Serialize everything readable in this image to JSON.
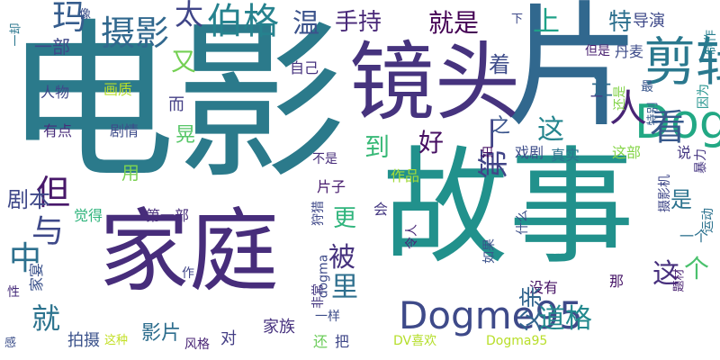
{
  "words": [
    {
      "text": "电影",
      "color": "#2b7a8b"
    },
    {
      "text": "故事",
      "color": "#21918c"
    },
    {
      "text": "片",
      "color": "#31688e"
    },
    {
      "text": "镜头",
      "color": "#46337e"
    },
    {
      "text": "家庭",
      "color": "#472d7b"
    },
    {
      "text": "剪辑",
      "color": "#2a788e"
    },
    {
      "text": "Dogme95",
      "color": "#3e4a89"
    },
    {
      "text": "Dogme",
      "color": "#22a884"
    },
    {
      "text": "人",
      "color": "#482475"
    },
    {
      "text": "看",
      "color": "#38598c"
    },
    {
      "text": "伯格",
      "color": "#26828e"
    },
    {
      "text": "摄影",
      "color": "#31688e"
    },
    {
      "text": "玛",
      "color": "#365d8d"
    },
    {
      "text": "太",
      "color": "#404688"
    },
    {
      "text": "温",
      "color": "#3b528b"
    },
    {
      "text": "手持",
      "color": "#482878"
    },
    {
      "text": "就是",
      "color": "#440154"
    },
    {
      "text": "上",
      "color": "#1fa188"
    },
    {
      "text": "特",
      "color": "#2d708e"
    },
    {
      "text": "导演",
      "color": "#3e4989"
    },
    {
      "text": "这",
      "color": "#25858e"
    },
    {
      "text": "第一",
      "color": "#414487"
    },
    {
      "text": "好",
      "color": "#471063"
    },
    {
      "text": "到",
      "color": "#38b977"
    },
    {
      "text": "更",
      "color": "#2fb47c"
    },
    {
      "text": "但",
      "color": "#48186a"
    },
    {
      "text": "与",
      "color": "#3e4989"
    },
    {
      "text": "中",
      "color": "#2d708e"
    },
    {
      "text": "被",
      "color": "#46327e"
    },
    {
      "text": "里",
      "color": "#2e6f8e"
    },
    {
      "text": "道格",
      "color": "#23898e"
    },
    {
      "text": "这",
      "color": "#472f7d"
    },
    {
      "text": "个",
      "color": "#4ac16d"
    },
    {
      "text": "就",
      "color": "#2c738e"
    },
    {
      "text": "剧本",
      "color": "#3f4889"
    },
    {
      "text": "又",
      "color": "#75d054"
    },
    {
      "text": "着",
      "color": "#3e4c8a"
    },
    {
      "text": "让",
      "color": "#2f6b8e"
    },
    {
      "text": "一部",
      "color": "#3f4788"
    },
    {
      "text": "用",
      "color": "#7ad151"
    },
    {
      "text": "晃",
      "color": "#56c667"
    },
    {
      "text": "之",
      "color": "#3a548c"
    },
    {
      "text": "画质",
      "color": "#b8de29"
    },
    {
      "text": "人物",
      "color": "#3f4889"
    },
    {
      "text": "有点",
      "color": "#472c7a"
    },
    {
      "text": "剧情",
      "color": "#3e4c8a"
    },
    {
      "text": "不是",
      "color": "#472c7a"
    },
    {
      "text": "自己",
      "color": "#46327e"
    },
    {
      "text": "而",
      "color": "#433e85"
    },
    {
      "text": "丹麦",
      "color": "#3e4c8a"
    },
    {
      "text": "但是",
      "color": "#481f70"
    },
    {
      "text": "制作",
      "color": "#277f8e"
    },
    {
      "text": "因为",
      "color": "#20928c"
    },
    {
      "text": "最",
      "color": "#39568c"
    },
    {
      "text": "还是",
      "color": "#84d44b"
    },
    {
      "text": "特别",
      "color": "#375b8d"
    },
    {
      "text": "这部",
      "color": "#86d549"
    },
    {
      "text": "说",
      "color": "#453882"
    },
    {
      "text": "暴力",
      "color": "#453581"
    },
    {
      "text": "戏剧",
      "color": "#3d4d8a"
    },
    {
      "text": "真实",
      "color": "#2c738e"
    },
    {
      "text": "作品",
      "color": "#a0da39"
    },
    {
      "text": "片子",
      "color": "#481c6e"
    },
    {
      "text": "拍",
      "color": "#471164"
    },
    {
      "text": "摄影机",
      "color": "#3f4788"
    },
    {
      "text": "运动",
      "color": "#2c728e"
    },
    {
      "text": "什么",
      "color": "#3c4f8a"
    },
    {
      "text": "令人",
      "color": "#482878"
    },
    {
      "text": "如果",
      "color": "#3b528b"
    },
    {
      "text": "没有",
      "color": "#471365"
    },
    {
      "text": "那",
      "color": "#481769"
    },
    {
      "text": "题材",
      "color": "#482071"
    },
    {
      "text": "一个",
      "color": "#2c718e"
    },
    {
      "text": "会",
      "color": "#453882"
    },
    {
      "text": "觉得",
      "color": "#2fb47c"
    },
    {
      "text": "第一部",
      "color": "#472d7b"
    },
    {
      "text": "家宴",
      "color": "#3b528b"
    },
    {
      "text": "狩猎",
      "color": "#3f4889"
    },
    {
      "text": "dogma",
      "color": "#3e4a89"
    },
    {
      "text": "非常",
      "color": "#453781"
    },
    {
      "text": "一样",
      "color": "#3d4e8a"
    },
    {
      "text": "父亲",
      "color": "#32648e"
    },
    {
      "text": "拍摄",
      "color": "#3b528b"
    },
    {
      "text": "影片",
      "color": "#2e6e8e"
    },
    {
      "text": "家族",
      "color": "#46317e"
    },
    {
      "text": "作",
      "color": "#404588"
    },
    {
      "text": "性",
      "color": "#472d7b"
    },
    {
      "text": "感",
      "color": "#3c4f8a"
    },
    {
      "text": "这种",
      "color": "#c2df23"
    },
    {
      "text": "风格",
      "color": "#482475"
    },
    {
      "text": "对",
      "color": "#433d84"
    },
    {
      "text": "还",
      "color": "#6ccd5a"
    },
    {
      "text": "把",
      "color": "#3f4788"
    },
    {
      "text": "DV喜欢",
      "color": "#b5de2b"
    },
    {
      "text": "Dogma95",
      "color": "#b8de29"
    },
    {
      "text": "一却",
      "color": "#2a768e"
    },
    {
      "text": "像",
      "color": "#3c4f8a"
    },
    {
      "text": "下",
      "color": "#3e4989"
    },
    {
      "text": "是",
      "color": "#2c738e"
    },
    {
      "text": "ー",
      "color": "#433e85"
    }
  ]
}
